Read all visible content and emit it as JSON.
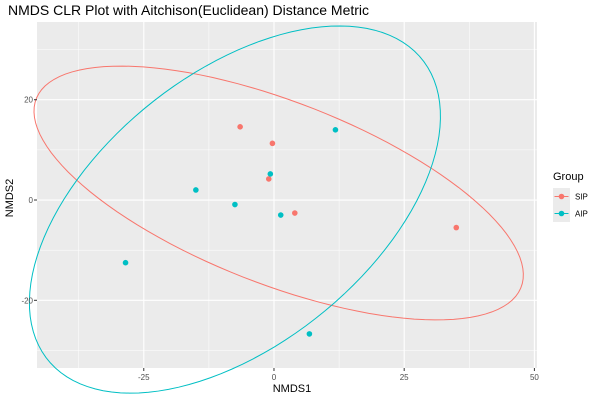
{
  "chart_data": {
    "type": "scatter",
    "title": "NMDS CLR Plot with Aitchison(Euclidean) Distance Metric",
    "xlabel": "NMDS1",
    "ylabel": "NMDS2",
    "xlim": [
      -45.5,
      50.5
    ],
    "ylim": [
      -33.5,
      35.5
    ],
    "xticks": [
      -25,
      0,
      25,
      50
    ],
    "yticks": [
      -20,
      0,
      20
    ],
    "grid": true,
    "legend": {
      "title": "Group",
      "placement": "right"
    },
    "series": [
      {
        "name": "SIP",
        "color": "#F8766D",
        "points": [
          {
            "x": -6.5,
            "y": 14.6
          },
          {
            "x": -0.3,
            "y": 11.3
          },
          {
            "x": -1.0,
            "y": 4.2
          },
          {
            "x": 4.0,
            "y": -2.6
          },
          {
            "x": 35.0,
            "y": -5.5
          }
        ],
        "ellipse": {
          "cx": 0.9,
          "cy": 1.4,
          "rx": 50.2,
          "ry": 18.1,
          "angle_deg": -22.2
        }
      },
      {
        "name": "AIP",
        "color": "#00BFC4",
        "points": [
          {
            "x": 11.8,
            "y": 14.0
          },
          {
            "x": -0.7,
            "y": 5.2
          },
          {
            "x": -15.0,
            "y": 2.0
          },
          {
            "x": -7.5,
            "y": -0.9
          },
          {
            "x": 1.3,
            "y": -3.0
          },
          {
            "x": -28.5,
            "y": -12.5
          },
          {
            "x": 6.8,
            "y": -26.7
          }
        ],
        "ellipse": {
          "cx": -7.5,
          "cy": -1.9,
          "rx": 46.8,
          "ry": 26.6,
          "angle_deg": 40.8
        }
      }
    ]
  }
}
